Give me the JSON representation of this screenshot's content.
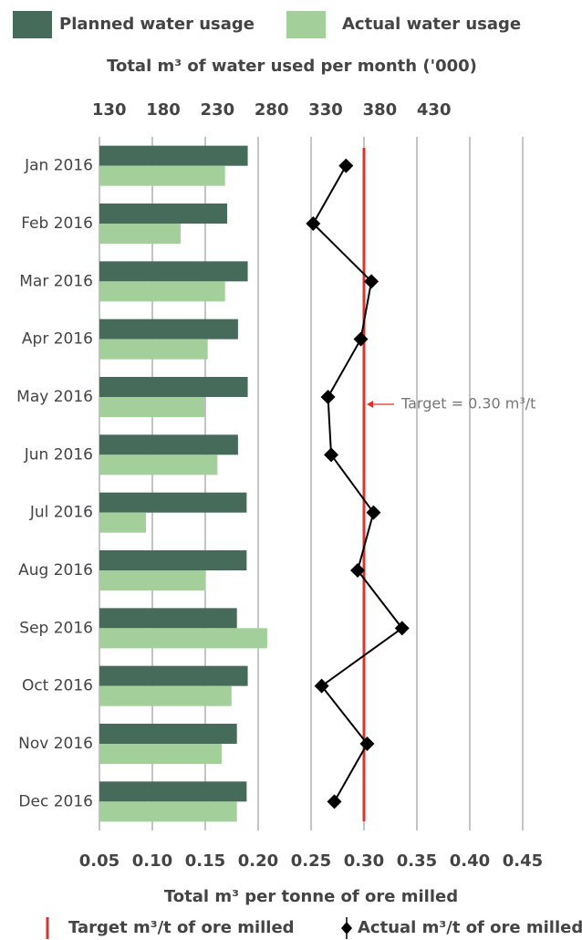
{
  "chart_data": {
    "type": "bar",
    "orientation": "horizontal",
    "title": "Total m³ of water used per month ('000)",
    "xlabel": "Total m³ per tonne of ore milled",
    "categories": [
      "Jan 2016",
      "Feb 2016",
      "Mar 2016",
      "Apr 2016",
      "May 2016",
      "Jun 2016",
      "Jul 2016",
      "Aug 2016",
      "Sep 2016",
      "Oct 2016",
      "Nov 2016",
      "Dec 2016"
    ],
    "series": [
      {
        "name": "Planned water usage",
        "color": "#466b5a",
        "axis": "x2",
        "values": [
          258,
          239,
          258,
          249,
          258,
          249,
          257,
          257,
          248,
          258,
          248,
          257
        ]
      },
      {
        "name": "Actual water usage",
        "color": "#a3cf9a",
        "axis": "x2",
        "values": [
          237,
          196,
          237,
          221,
          218,
          230,
          164,
          219,
          276,
          243,
          234,
          248
        ]
      },
      {
        "name": "Actual m³/t of ore milled",
        "color": "#000000",
        "type": "line",
        "axis": "x",
        "values": [
          0.283,
          0.252,
          0.307,
          0.297,
          0.266,
          0.269,
          0.309,
          0.294,
          0.336,
          0.26,
          0.303,
          0.272
        ]
      }
    ],
    "target": {
      "name": "Target m³/t of ore milled",
      "value": 0.3,
      "color": "#d9342b",
      "annotation": "Target = 0.30 m³/t"
    },
    "xlim": [
      0.05,
      0.45
    ],
    "xticks": [
      0.05,
      {
        "value": 0.1,
        "label": "0.10"
      },
      0.15,
      {
        "value": 0.2,
        "label": "0.20"
      },
      0.25,
      {
        "value": 0.3,
        "label": "0.30"
      },
      0.35,
      {
        "value": 0.4,
        "label": "0.40"
      },
      0.45
    ],
    "x2lim": [
      121,
      512
    ],
    "x2ticks": [
      130,
      180,
      230,
      280,
      330,
      380,
      430
    ],
    "grid": true
  }
}
